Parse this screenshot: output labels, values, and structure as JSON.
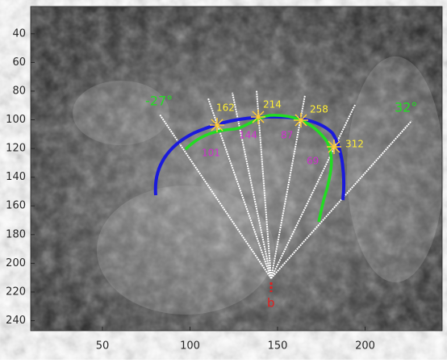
{
  "chart_data": {
    "type": "image",
    "xlim": [
      9,
      244
    ],
    "ylim": [
      247,
      21
    ],
    "xticks": [
      50,
      100,
      150,
      200
    ],
    "yticks": [
      40,
      60,
      80,
      100,
      120,
      140,
      160,
      180,
      200,
      220,
      240
    ],
    "annotations": {
      "angles": [
        "-27°",
        "32°"
      ],
      "positions": [
        "162",
        "214",
        "258",
        "312"
      ],
      "measures": [
        "101",
        "144",
        "87",
        "69"
      ],
      "pivot": "b"
    }
  }
}
